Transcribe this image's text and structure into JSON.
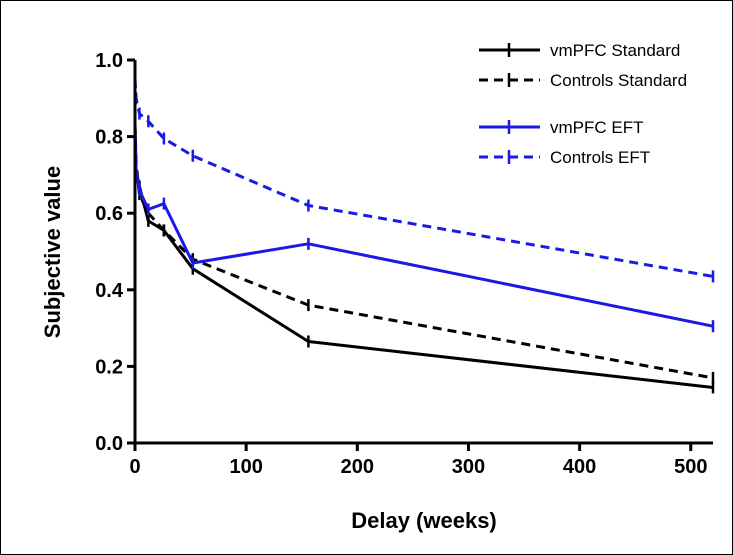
{
  "chart_data": {
    "type": "line",
    "xlabel": "Delay (weeks)",
    "ylabel": "Subjective value",
    "xlim": [
      0,
      520
    ],
    "ylim": [
      0,
      1.0
    ],
    "x_ticks": [
      0,
      100,
      200,
      300,
      400,
      500
    ],
    "y_ticks": [
      "0.0",
      "0.2",
      "0.4",
      "0.6",
      "0.8",
      "1.0"
    ],
    "grid": false,
    "legend_position": "top-right",
    "x": [
      0,
      1,
      4,
      12,
      26,
      52,
      156,
      520
    ],
    "series": [
      {
        "name": "vmPFC Standard",
        "color": "#000000",
        "dashed": false,
        "values": [
          0.83,
          0.71,
          0.67,
          0.58,
          0.555,
          0.455,
          0.265,
          0.145
        ]
      },
      {
        "name": "Controls Standard",
        "color": "#000000",
        "dashed": true,
        "values": [
          0.83,
          0.73,
          0.65,
          0.6,
          0.555,
          0.48,
          0.36,
          0.17
        ]
      },
      {
        "name": "vmPFC EFT",
        "color": "#1a1ae6",
        "dashed": false,
        "values": [
          0.82,
          0.71,
          0.66,
          0.61,
          0.625,
          0.47,
          0.52,
          0.305
        ]
      },
      {
        "name": "Controls EFT",
        "color": "#1a1ae6",
        "dashed": true,
        "values": [
          0.95,
          0.9,
          0.86,
          0.84,
          0.795,
          0.75,
          0.62,
          0.435
        ]
      }
    ]
  }
}
